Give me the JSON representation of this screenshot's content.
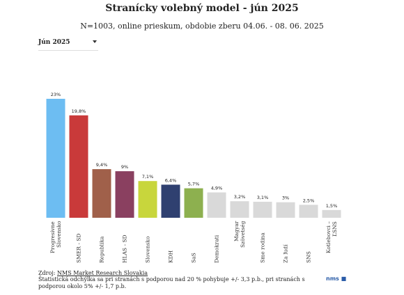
{
  "chart_data": {
    "type": "bar",
    "title": "Stranícky volebný model - jún 2025",
    "subtitle": "N=1003, online prieskum, obdobie zberu 04.06. - 08. 06. 2025",
    "period_selector": "Jún 2025",
    "categories": [
      "Progresívne Slovensko",
      "SMER - SD",
      "Republika",
      "HLAS - SD",
      "Slovensko",
      "KDH",
      "SaS",
      "Demokrati",
      "Magyar Szövetség",
      "Sme rodina",
      "Za ľudí",
      "SNS",
      "Kotlebovci – ĽSNS"
    ],
    "values": [
      23,
      19.8,
      9.4,
      9,
      7.1,
      6.4,
      5.7,
      4.9,
      3.2,
      3.1,
      3,
      2.5,
      1.5
    ],
    "value_labels": [
      "23%",
      "19,8%",
      "9,4%",
      "9%",
      "7,1%",
      "6,4%",
      "5,7%",
      "4,9%",
      "3,2%",
      "3,1%",
      "3%",
      "2,5%",
      "1,5%"
    ],
    "colors": [
      "#6dbdf2",
      "#c93a3a",
      "#a0604a",
      "#8a4060",
      "#c8d63c",
      "#2f4070",
      "#8db04f",
      "#d9d9d9",
      "#d9d9d9",
      "#d9d9d9",
      "#d9d9d9",
      "#d9d9d9",
      "#d9d9d9"
    ],
    "source_prefix": "Zdroj:",
    "source_link": "NMS Market Research Slovakia",
    "note": "Štatistická odchýlka sa pri stranách s podporou nad 20 % pohybuje +/- 3,3 p.b., pri stranách s podporou okolo 5% +/- 1,7 p.b.",
    "logo": "nms"
  }
}
